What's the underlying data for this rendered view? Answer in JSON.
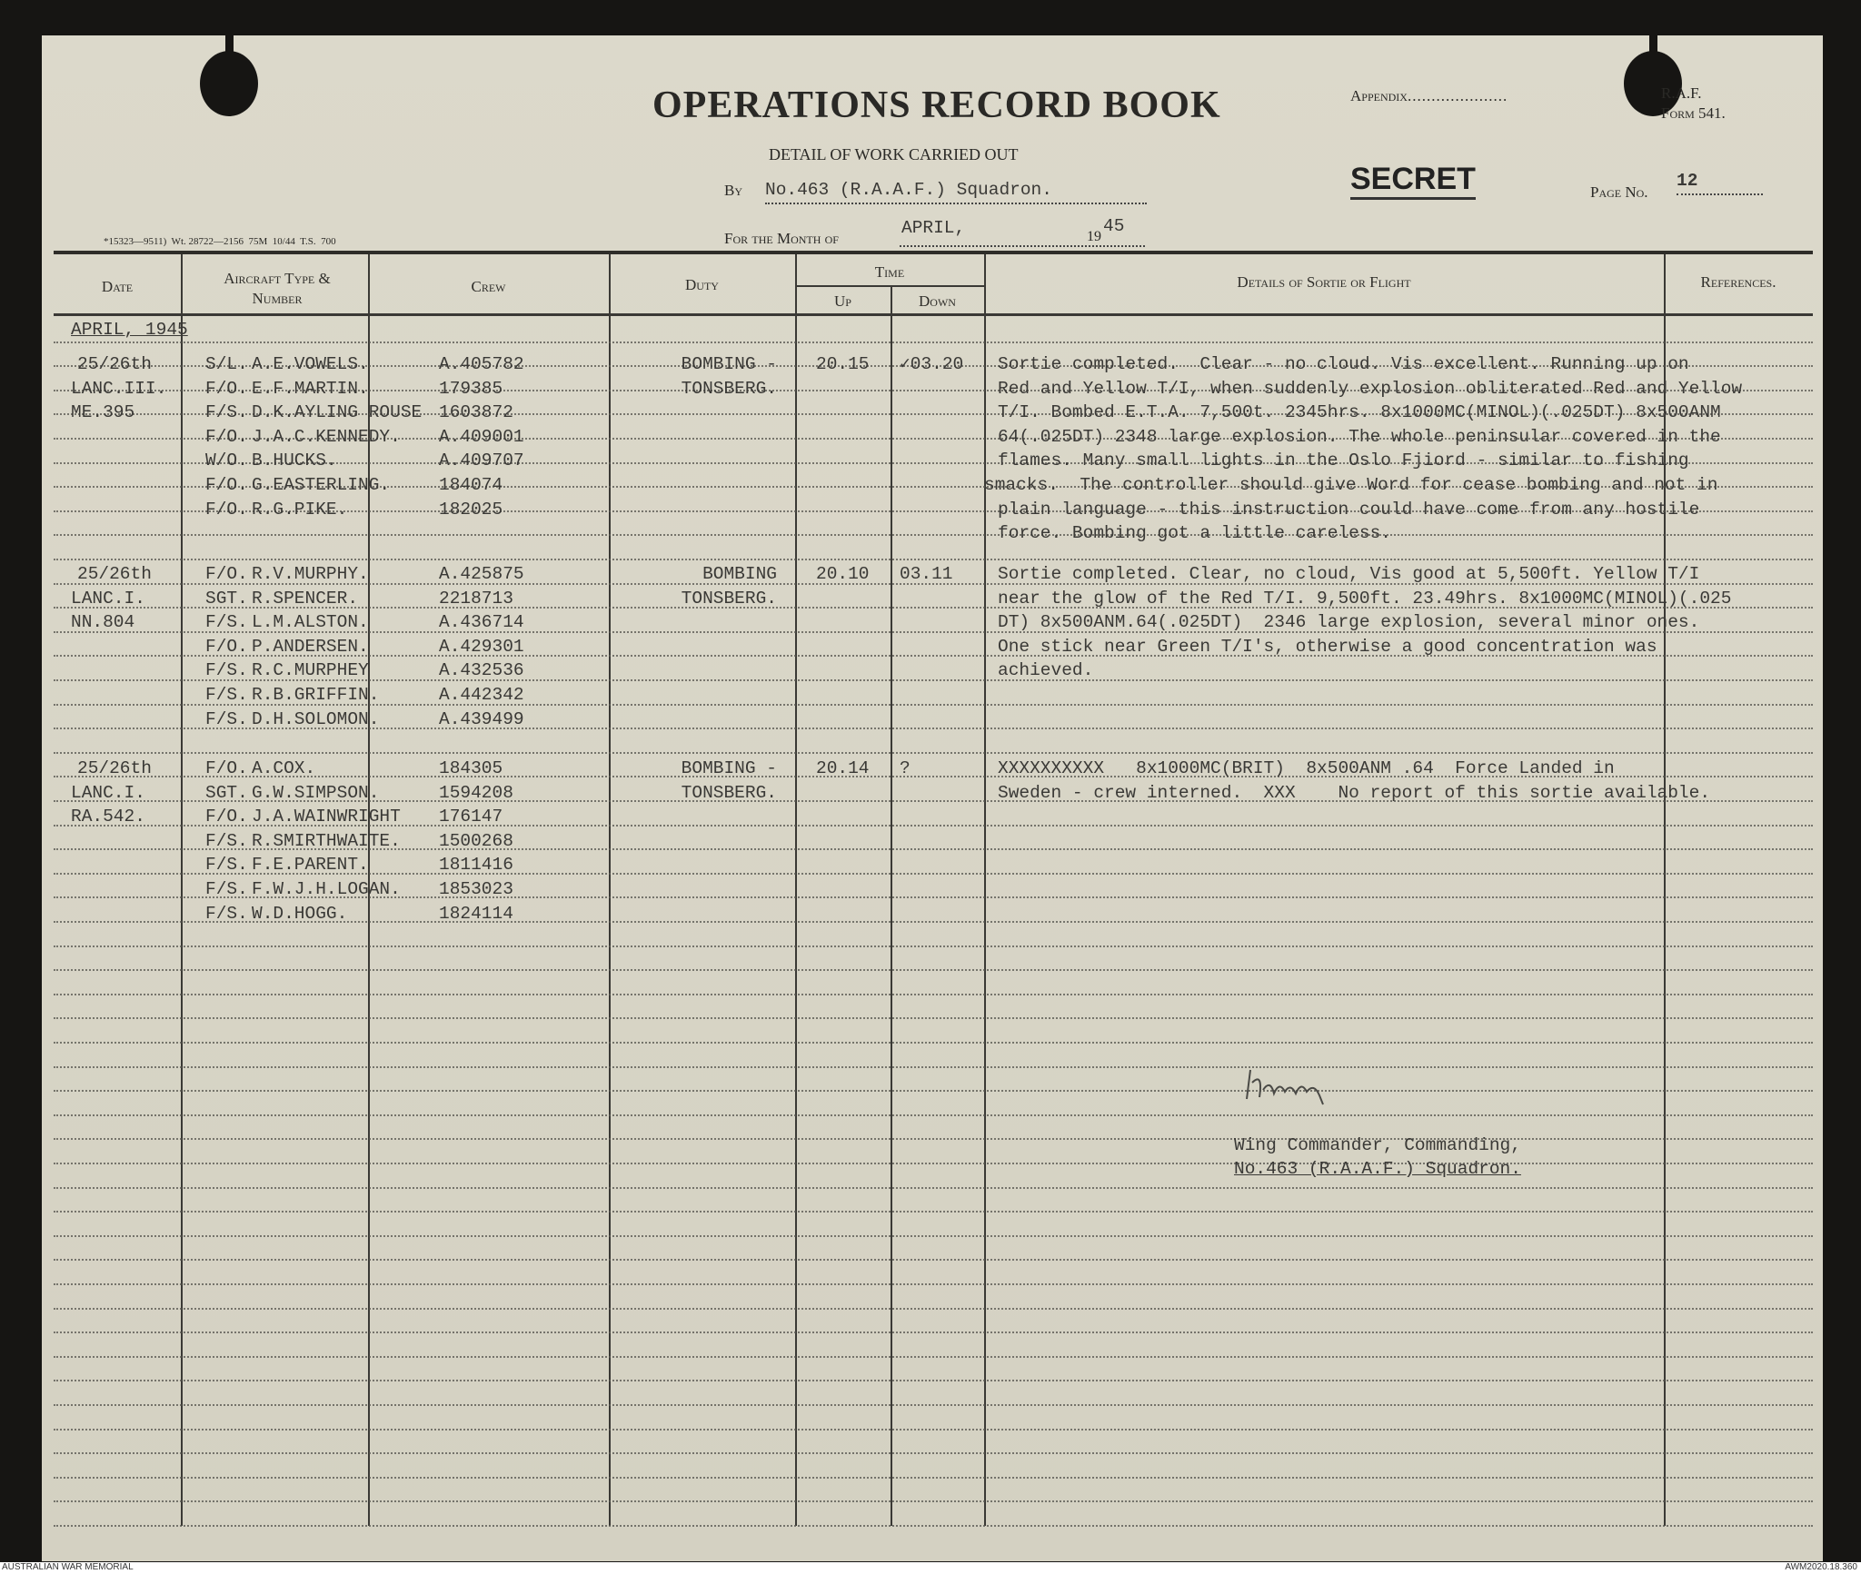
{
  "header": {
    "title": "OPERATIONS RECORD BOOK",
    "appendix_label": "Appendix",
    "form_label_line1": "R.A.F.",
    "form_label_line2": "Form 541.",
    "subtitle": "DETAIL OF WORK CARRIED OUT",
    "by_label": "By",
    "unit": "No.463 (R.A.A.F.) Squadron.",
    "classification": "SECRET",
    "page_label": "Page No.",
    "page_number": "12",
    "month_label": "For the Month of",
    "month": "APRIL,",
    "year_prefix": "19",
    "year_suffix": "45",
    "print_code": "*15323—9511)  Wt. 28722—2156  75M  10/44  T.S.  700"
  },
  "columns": {
    "date": "Date",
    "aircraft": "Aircraft Type & Number",
    "crew": "Crew",
    "duty": "Duty",
    "time": "Time",
    "up": "Up",
    "down": "Down",
    "details": "Details of Sortie or Flight",
    "references": "References."
  },
  "section_heading": "APRIL, 1945",
  "records": [
    {
      "date": "25/26th",
      "aircraft_type": "LANC.III.",
      "aircraft_number": "ME.395",
      "crew": [
        {
          "rank": "S/L.",
          "name": "A.E.VOWELS.",
          "number": "A.405782"
        },
        {
          "rank": "F/O.",
          "name": "E.F.MARTIN.",
          "number": "179385"
        },
        {
          "rank": "F/S.",
          "name": "D.K.AYLING ROUSE",
          "number": "1603872"
        },
        {
          "rank": "F/O.",
          "name": "J.A.C.KENNEDY.",
          "number": "A.409001"
        },
        {
          "rank": "W/O.",
          "name": "B.HUCKS.",
          "number": "A.409707"
        },
        {
          "rank": "F/O.",
          "name": "G.EASTERLING.",
          "number": "184074"
        },
        {
          "rank": "F/O.",
          "name": "R.G.PIKE.",
          "number": "182025"
        }
      ],
      "duty": [
        "BOMBING -",
        "TONSBERG."
      ],
      "up": "20.15",
      "down": "✓03.20",
      "details": [
        "Sortie completed.  Clear - no cloud. Vis excellent. Running up on",
        "Red and Yellow T/I, when suddenly explosion obliterated Red and Yellow",
        "T/I. Bombed E.T.A. 7,500t. 2345hrs. 8x1000MC(MINOL)(.025DT) 8x500ANM",
        "64(.025DT) 2348 large explosion. The whole peninsular covered in the",
        "flames. Many small lights in the Oslo Fjiord - similar to fishing",
        "smacks.  The controller should give Word for cease bombing and not in",
        "plain language - this instruction could have come from any hostile",
        "force. Bombing got a little careless."
      ]
    },
    {
      "date": "25/26th",
      "aircraft_type": "LANC.I.",
      "aircraft_number": "NN.804",
      "crew": [
        {
          "rank": "F/O.",
          "name": "R.V.MURPHY.",
          "number": "A.425875"
        },
        {
          "rank": "SGT.",
          "name": "R.SPENCER.",
          "number": "2218713"
        },
        {
          "rank": "F/S.",
          "name": "L.M.ALSTON.",
          "number": "A.436714"
        },
        {
          "rank": "F/O.",
          "name": "P.ANDERSEN.",
          "number": "A.429301"
        },
        {
          "rank": "F/S.",
          "name": "R.C.MURPHEY",
          "number": "A.432536"
        },
        {
          "rank": "F/S.",
          "name": "R.B.GRIFFIN.",
          "number": "A.442342"
        },
        {
          "rank": "F/S.",
          "name": "D.H.SOLOMON.",
          "number": "A.439499"
        }
      ],
      "duty": [
        "BOMBING",
        "TONSBERG."
      ],
      "up": "20.10",
      "down": "03.11",
      "details": [
        "Sortie completed. Clear, no cloud, Vis good at 5,500ft. Yellow T/I",
        "near the glow of the Red T/I. 9,500ft. 23.49hrs. 8x1000MC(MINOL)(.025",
        "DT) 8x500ANM.64(.025DT)  2346 large explosion, several minor ones.",
        "One stick near Green T/I's, otherwise a good concentration was",
        "achieved."
      ]
    },
    {
      "date": "25/26th",
      "aircraft_type": "LANC.I.",
      "aircraft_number": "RA.542.",
      "crew": [
        {
          "rank": "F/O.",
          "name": "A.COX.",
          "number": "184305"
        },
        {
          "rank": "SGT.",
          "name": "G.W.SIMPSON.",
          "number": "1594208"
        },
        {
          "rank": "F/O.",
          "name": "J.A.WAINWRIGHT",
          "number": "176147"
        },
        {
          "rank": "F/S.",
          "name": "R.SMIRTHWAITE.",
          "number": "1500268"
        },
        {
          "rank": "F/S.",
          "name": "F.E.PARENT.",
          "number": "1811416"
        },
        {
          "rank": "F/S.",
          "name": "F.W.J.H.LOGAN.",
          "number": "1853023"
        },
        {
          "rank": "F/S.",
          "name": "W.D.HOGG.",
          "number": "1824114"
        }
      ],
      "duty": [
        "BOMBING -",
        "TONSBERG."
      ],
      "up": "20.14",
      "down": "?",
      "details": [
        "XXXXXXXXXX   8x1000MC(BRIT)  8x500ANM .64  Force Landed in",
        "Sweden - crew interned.  XXX    No report of this sortie available."
      ]
    }
  ],
  "signature": {
    "signature_text": "K.R.Kemp",
    "role": "Wing Commander, Commanding,",
    "unit": "No.463 (R.A.A.F.) Squadron."
  },
  "footer": {
    "left": "AUSTRALIAN WAR MEMORIAL",
    "right": "AWM2020.18.360"
  }
}
